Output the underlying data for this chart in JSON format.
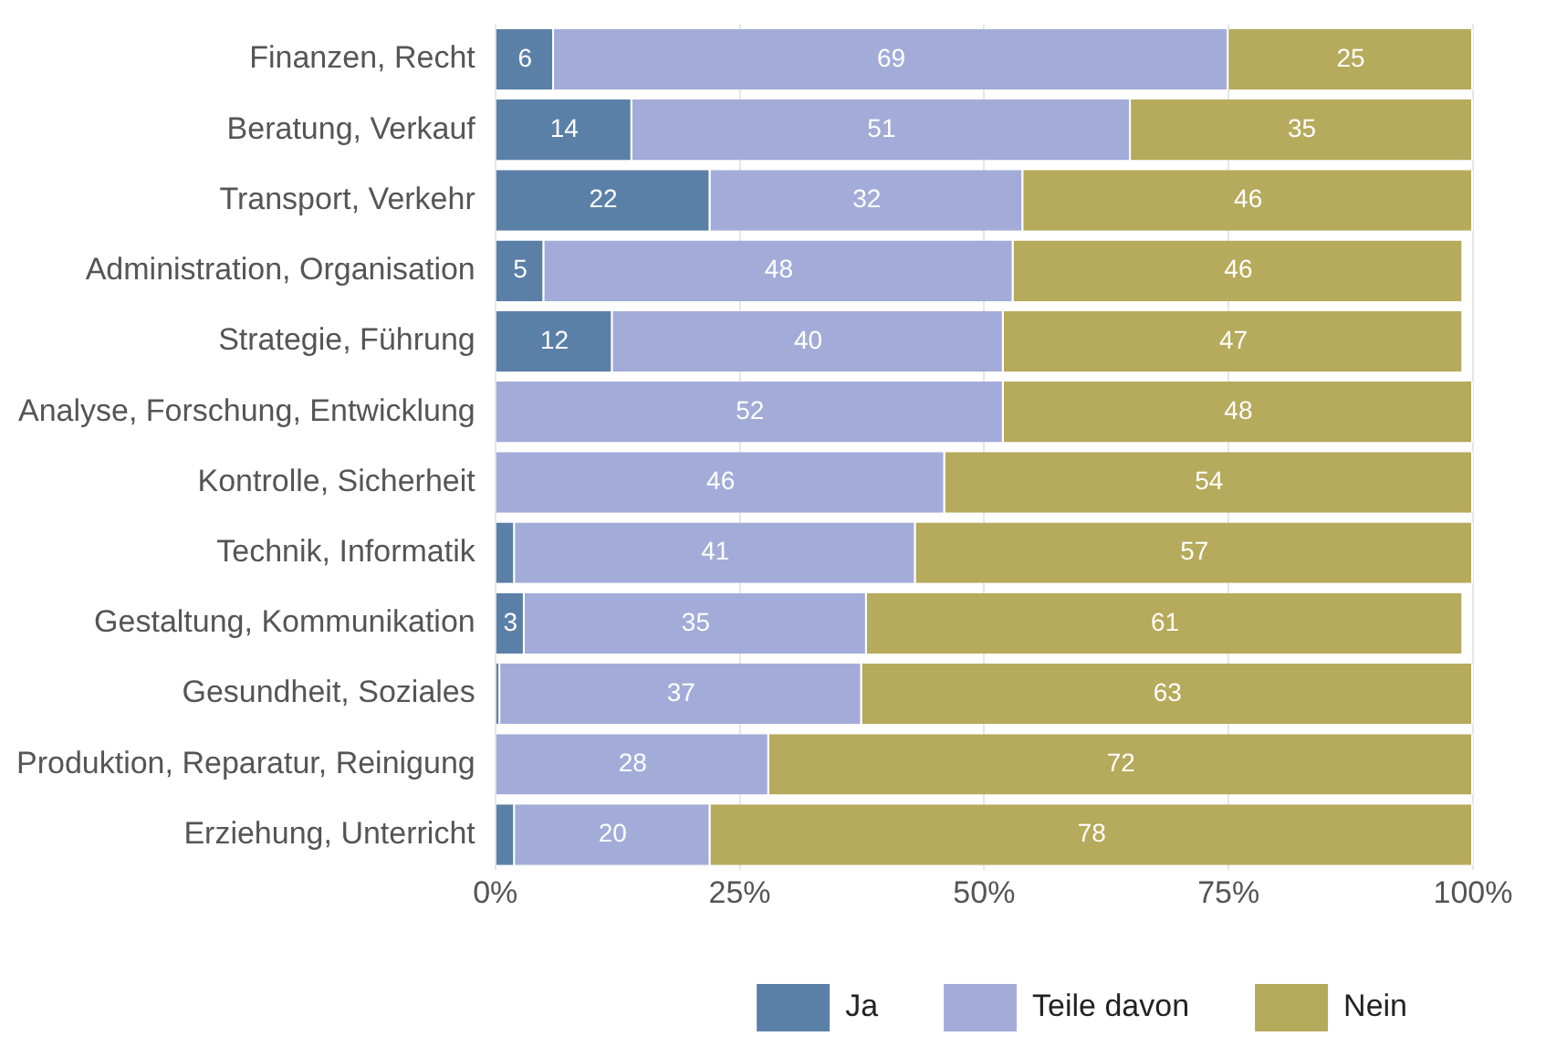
{
  "chart_data": {
    "type": "bar",
    "orientation": "horizontal",
    "stacked": true,
    "categories": [
      "Finanzen, Recht",
      "Beratung, Verkauf",
      "Transport, Verkehr",
      "Administration, Organisation",
      "Strategie, Führung",
      "Analyse, Forschung, Entwicklung",
      "Kontrolle, Sicherheit",
      "Technik, Informatik",
      "Gestaltung, Kommunikation",
      "Gesundheit, Soziales",
      "Produktion, Reparatur, Reinigung",
      "Erziehung, Unterricht"
    ],
    "series": [
      {
        "name": "Ja",
        "color": "#5b80a8",
        "values": [
          6,
          14,
          22,
          5,
          12,
          0,
          0,
          2,
          3,
          0.5,
          0,
          2
        ],
        "value_labels": [
          "6",
          "14",
          "22",
          "5",
          "12",
          null,
          null,
          null,
          "3",
          null,
          null,
          null
        ]
      },
      {
        "name": "Teile davon",
        "color": "#a3acd8",
        "values": [
          69,
          51,
          32,
          48,
          40,
          52,
          46,
          41,
          35,
          37,
          28,
          20
        ],
        "value_labels": [
          "69",
          "51",
          "32",
          "48",
          "40",
          "52",
          "46",
          "41",
          "35",
          "37",
          "28",
          "20"
        ]
      },
      {
        "name": "Nein",
        "color": "#b6aa5c",
        "values": [
          25,
          35,
          46,
          46,
          47,
          48,
          54,
          57,
          61,
          62.5,
          72,
          78
        ],
        "value_labels": [
          "25",
          "35",
          "46",
          "46",
          "47",
          "48",
          "54",
          "57",
          "61",
          "63",
          "72",
          "78"
        ]
      }
    ],
    "xlim": [
      0,
      100
    ],
    "xticks": [
      {
        "value": 0,
        "label": "0%"
      },
      {
        "value": 25,
        "label": "25%"
      },
      {
        "value": 50,
        "label": "50%"
      },
      {
        "value": 75,
        "label": "75%"
      },
      {
        "value": 100,
        "label": "100%"
      }
    ],
    "grid": "x",
    "legend": "bottom"
  }
}
